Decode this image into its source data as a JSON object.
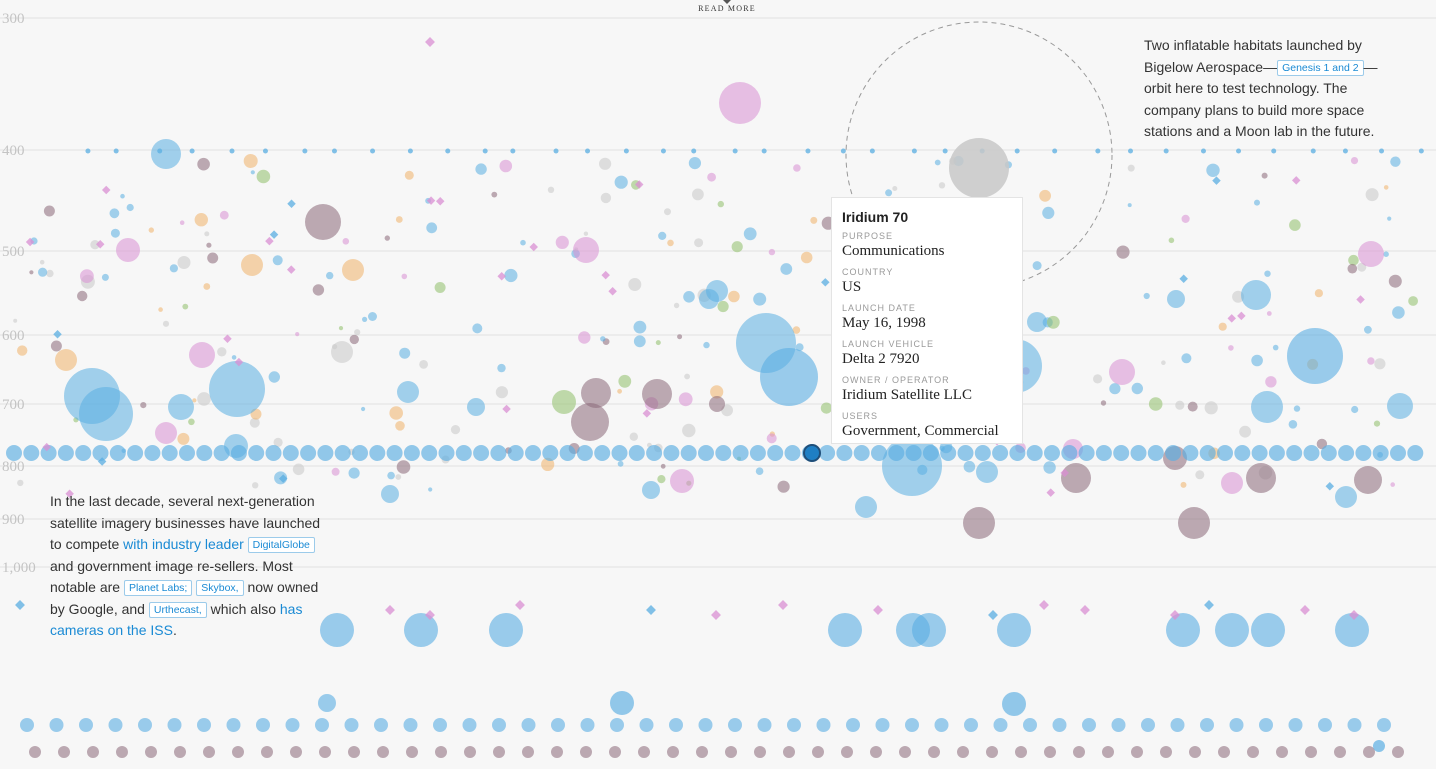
{
  "read_more": "READ MORE",
  "chart_data": {
    "type": "scatter",
    "y_axis": {
      "ticks": [
        "300",
        "400",
        "500",
        "600",
        "700",
        "800",
        "900",
        "1,000"
      ],
      "range": [
        300,
        1000
      ]
    },
    "colors": {
      "Communications": "#5aaee2",
      "Earth Observation": "#d98fd3",
      "Technology Development": "#c8c8c8",
      "Other": "#8a6878",
      "Science": "#f0b26a",
      "Navigation": "#8fbf6a",
      "Highlight": "#1f7fc4"
    },
    "highlight": {
      "name": "Iridium 70",
      "altitude": 780
    }
  },
  "annotations": {
    "top": {
      "line1": "Two inflatable habitats launched by",
      "line2_before": "Bigelow Aerospace—",
      "chip": "Genesis 1 and 2",
      "line2_after": "—",
      "rest": "orbit here to test technology. The company plans to build more space stations and a Moon lab in the future."
    },
    "left": {
      "text1": "In the last decade, several next-generation satellite imagery businesses have launched to compete ",
      "link1": "with industry leader",
      "chip1": "DigitalGlobe",
      "text2": " and government image re-sellers. Most notable are ",
      "chip2": "Planet Labs;",
      "chip3": "Skybox,",
      "text3": " now owned by Google, and ",
      "chip4": "Urthecast,",
      "text4": " which also ",
      "link2": "has cameras on the ISS",
      "text5": "."
    }
  },
  "tooltip": {
    "title": "Iridium 70",
    "fields": [
      {
        "label": "PURPOSE",
        "value": "Communications"
      },
      {
        "label": "COUNTRY",
        "value": "US"
      },
      {
        "label": "LAUNCH DATE",
        "value": "May 16, 1998"
      },
      {
        "label": "LAUNCH VEHICLE",
        "value": "Delta 2 7920"
      },
      {
        "label": "OWNER / OPERATOR",
        "value": "Iridium Satellite LLC"
      },
      {
        "label": "USERS",
        "value": "Government, Commercial"
      }
    ]
  }
}
